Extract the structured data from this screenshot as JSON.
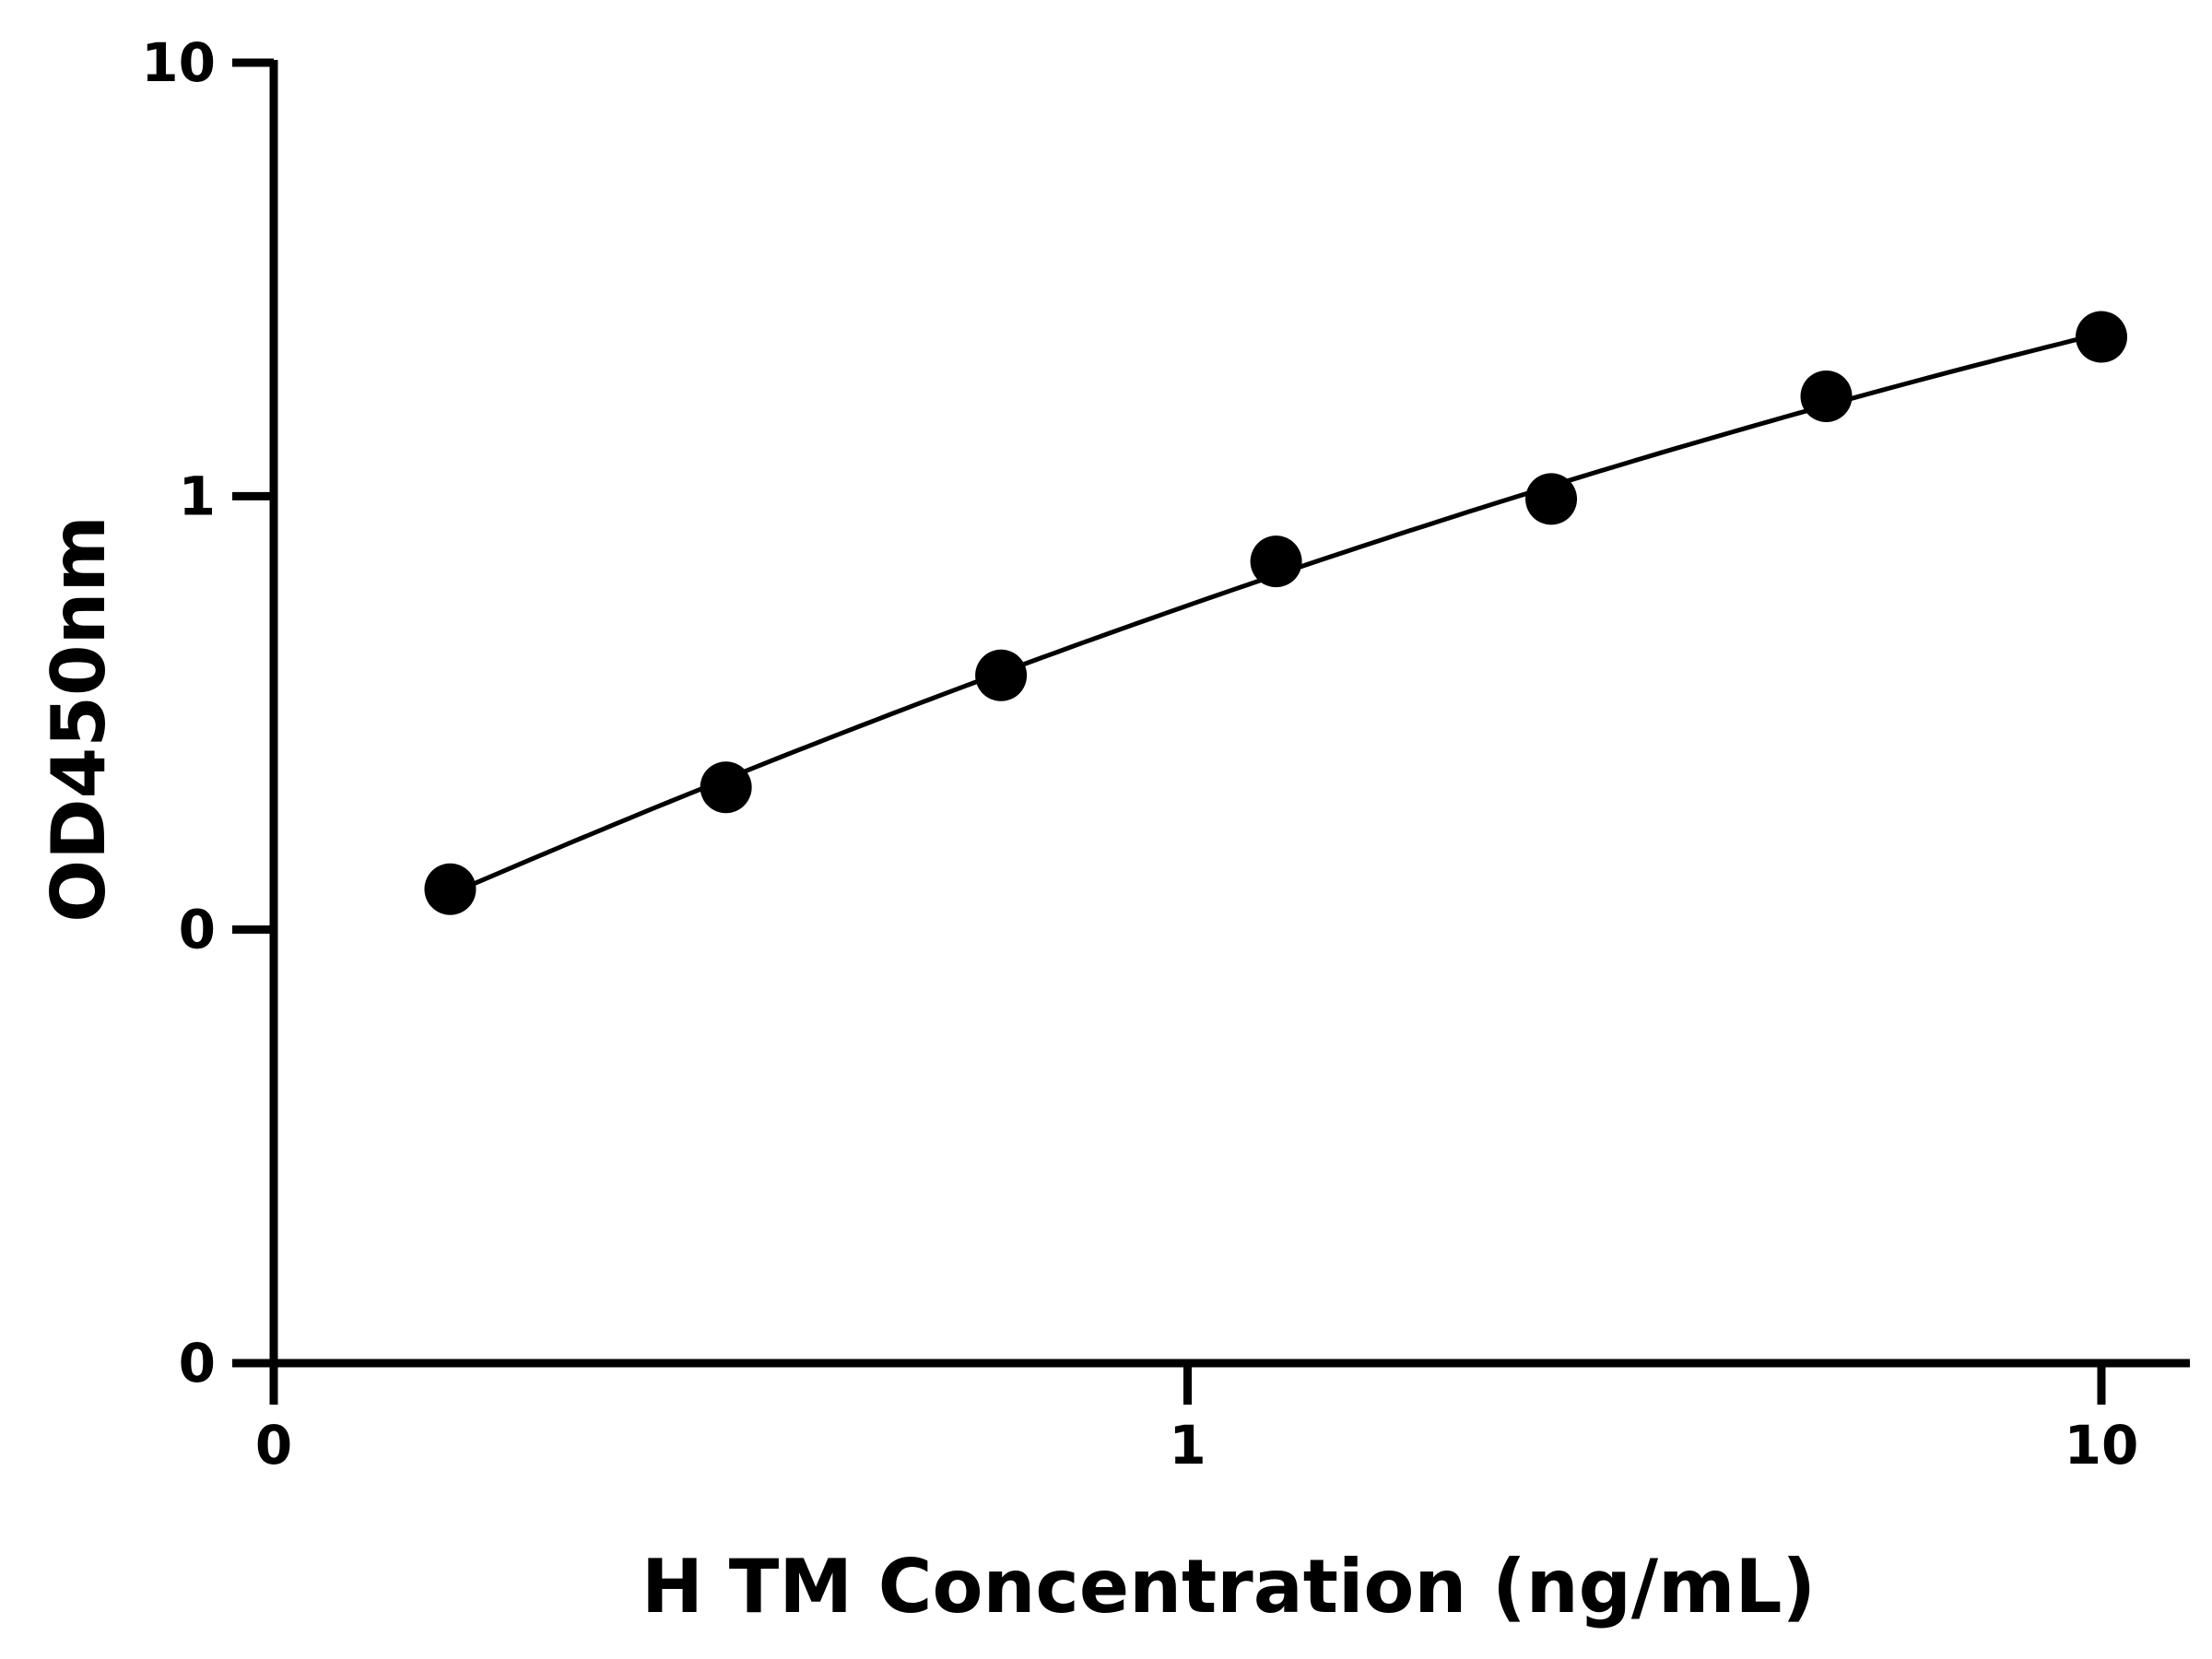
{
  "chart_data": {
    "type": "scatter",
    "title": "",
    "xlabel": "H TM Concentration (ng/mL)",
    "ylabel": "OD450nm",
    "x_scale": "log",
    "y_scale": "log",
    "xlim": [
      0.1,
      10
    ],
    "ylim": [
      0.01,
      10
    ],
    "x_ticks": [
      {
        "value": 0.1,
        "label": "0"
      },
      {
        "value": 1,
        "label": "1"
      },
      {
        "value": 10,
        "label": "10"
      }
    ],
    "y_ticks": [
      {
        "value": 0.01,
        "label": "0"
      },
      {
        "value": 0.1,
        "label": "0"
      },
      {
        "value": 1,
        "label": "1"
      },
      {
        "value": 10,
        "label": "10"
      }
    ],
    "grid": false,
    "legend": "none",
    "series": [
      {
        "points": [
          {
            "x": 0.156,
            "y": 0.124
          },
          {
            "x": 0.3125,
            "y": 0.213
          },
          {
            "x": 0.625,
            "y": 0.386
          },
          {
            "x": 1.25,
            "y": 0.707
          },
          {
            "x": 2.5,
            "y": 0.985
          },
          {
            "x": 5,
            "y": 1.7
          },
          {
            "x": 10,
            "y": 2.33
          }
        ],
        "color": "#000000",
        "curve_fit": true
      }
    ]
  }
}
